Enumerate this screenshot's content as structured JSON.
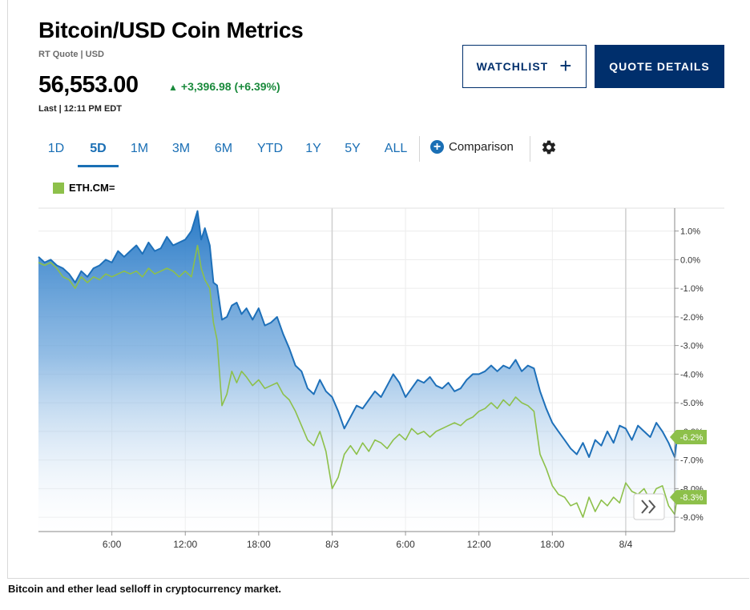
{
  "header": {
    "title": "Bitcoin/USD Coin Metrics",
    "subtitle": "RT Quote | USD",
    "price": "56,553.00",
    "change": "+3,396.98 (+6.39%)",
    "last_time": "Last | 12:11 PM EDT",
    "up_color": "#1a8a3c"
  },
  "actions": {
    "watchlist_label": "WATCHLIST",
    "quote_details_label": "QUOTE DETAILS",
    "brand_color": "#002f6c"
  },
  "tabs": [
    {
      "label": "1D",
      "active": false
    },
    {
      "label": "5D",
      "active": true
    },
    {
      "label": "1M",
      "active": false
    },
    {
      "label": "3M",
      "active": false
    },
    {
      "label": "6M",
      "active": false
    },
    {
      "label": "YTD",
      "active": false
    },
    {
      "label": "1Y",
      "active": false
    },
    {
      "label": "5Y",
      "active": false
    },
    {
      "label": "ALL",
      "active": false
    }
  ],
  "comparison_label": "Comparison",
  "icons": {
    "plus": "plus-icon",
    "comparison": "plus-circle-icon",
    "settings": "gear-icon",
    "scroll": "double-chevron-right-icon"
  },
  "caption": "Bitcoin and ether lead selloff in cryptocurrency market.",
  "chart_data": {
    "type": "area",
    "legend": [
      {
        "name": "ETH.CM=",
        "color": "#8dc04a"
      }
    ],
    "x_ticks": [
      "6:00",
      "12:00",
      "18:00",
      "8/3",
      "6:00",
      "12:00",
      "18:00",
      "8/4"
    ],
    "x_tick_hours": [
      6,
      12,
      18,
      24,
      30,
      36,
      42,
      48
    ],
    "x_range": [
      0,
      52
    ],
    "ylim": [
      -9.5,
      1.8
    ],
    "y_ticks": [
      "1.0%",
      "0.0%",
      "-1.0%",
      "-2.0%",
      "-3.0%",
      "-4.0%",
      "-5.0%",
      "-6.0%",
      "-7.0%",
      "-8.0%",
      "-9.0%"
    ],
    "y_tick_values": [
      1,
      0,
      -1,
      -2,
      -3,
      -4,
      -5,
      -6,
      -7,
      -8,
      -9
    ],
    "day_separators": [
      24,
      48
    ],
    "series": [
      {
        "name": "Bitcoin/USD",
        "color": "#1e70b9",
        "last_label": "-6.2%",
        "points": [
          [
            0,
            0.1
          ],
          [
            0.5,
            -0.1
          ],
          [
            1,
            0.0
          ],
          [
            1.5,
            -0.2
          ],
          [
            2,
            -0.3
          ],
          [
            2.5,
            -0.5
          ],
          [
            3,
            -0.8
          ],
          [
            3.5,
            -0.4
          ],
          [
            4,
            -0.6
          ],
          [
            4.5,
            -0.3
          ],
          [
            5,
            -0.2
          ],
          [
            5.5,
            0.0
          ],
          [
            6,
            -0.1
          ],
          [
            6.5,
            0.3
          ],
          [
            7,
            0.1
          ],
          [
            7.5,
            0.3
          ],
          [
            8,
            0.5
          ],
          [
            8.5,
            0.2
          ],
          [
            9,
            0.6
          ],
          [
            9.5,
            0.3
          ],
          [
            10,
            0.4
          ],
          [
            10.5,
            0.8
          ],
          [
            11,
            0.5
          ],
          [
            11.5,
            0.6
          ],
          [
            12,
            0.7
          ],
          [
            12.5,
            1.0
          ],
          [
            13,
            1.7
          ],
          [
            13.3,
            0.7
          ],
          [
            13.6,
            1.1
          ],
          [
            14,
            0.5
          ],
          [
            14.3,
            -0.8
          ],
          [
            14.6,
            -0.9
          ],
          [
            15,
            -2.1
          ],
          [
            15.4,
            -2.0
          ],
          [
            15.8,
            -1.6
          ],
          [
            16.2,
            -1.5
          ],
          [
            16.6,
            -1.9
          ],
          [
            17,
            -1.7
          ],
          [
            17.5,
            -2.1
          ],
          [
            18,
            -1.7
          ],
          [
            18.5,
            -2.3
          ],
          [
            19,
            -2.2
          ],
          [
            19.5,
            -2.0
          ],
          [
            20,
            -2.6
          ],
          [
            20.5,
            -3.1
          ],
          [
            21,
            -3.7
          ],
          [
            21.5,
            -3.9
          ],
          [
            22,
            -4.5
          ],
          [
            22.5,
            -4.7
          ],
          [
            23,
            -4.2
          ],
          [
            23.5,
            -4.6
          ],
          [
            24,
            -4.8
          ],
          [
            24.5,
            -5.3
          ],
          [
            25,
            -5.9
          ],
          [
            25.5,
            -5.5
          ],
          [
            26,
            -5.1
          ],
          [
            26.5,
            -5.2
          ],
          [
            27,
            -4.9
          ],
          [
            27.5,
            -4.6
          ],
          [
            28,
            -4.8
          ],
          [
            28.5,
            -4.4
          ],
          [
            29,
            -4.0
          ],
          [
            29.5,
            -4.3
          ],
          [
            30,
            -4.8
          ],
          [
            30.5,
            -4.5
          ],
          [
            31,
            -4.2
          ],
          [
            31.5,
            -4.3
          ],
          [
            32,
            -4.1
          ],
          [
            32.5,
            -4.4
          ],
          [
            33,
            -4.5
          ],
          [
            33.5,
            -4.3
          ],
          [
            34,
            -4.6
          ],
          [
            34.5,
            -4.5
          ],
          [
            35,
            -4.2
          ],
          [
            35.5,
            -4.0
          ],
          [
            36,
            -4.0
          ],
          [
            36.5,
            -3.9
          ],
          [
            37,
            -3.7
          ],
          [
            37.5,
            -3.9
          ],
          [
            38,
            -3.7
          ],
          [
            38.5,
            -3.8
          ],
          [
            39,
            -3.5
          ],
          [
            39.5,
            -3.9
          ],
          [
            40,
            -3.7
          ],
          [
            40.5,
            -3.8
          ],
          [
            41,
            -4.6
          ],
          [
            41.5,
            -5.2
          ],
          [
            42,
            -5.7
          ],
          [
            42.5,
            -6.0
          ],
          [
            43,
            -6.3
          ],
          [
            43.5,
            -6.6
          ],
          [
            44,
            -6.8
          ],
          [
            44.5,
            -6.4
          ],
          [
            45,
            -6.9
          ],
          [
            45.5,
            -6.3
          ],
          [
            46,
            -6.5
          ],
          [
            46.5,
            -6.0
          ],
          [
            47,
            -6.4
          ],
          [
            47.5,
            -5.8
          ],
          [
            48,
            -5.9
          ],
          [
            48.5,
            -6.3
          ],
          [
            49,
            -5.8
          ],
          [
            49.5,
            -6.0
          ],
          [
            50,
            -6.2
          ],
          [
            50.5,
            -5.7
          ],
          [
            51,
            -6.0
          ],
          [
            51.5,
            -6.4
          ],
          [
            52,
            -6.9
          ],
          [
            52.2,
            -6.2
          ]
        ]
      },
      {
        "name": "ETH.CM=",
        "color": "#8dc04a",
        "last_label": "-8.3%",
        "points": [
          [
            0,
            -0.1
          ],
          [
            0.5,
            -0.2
          ],
          [
            1,
            -0.1
          ],
          [
            1.5,
            -0.3
          ],
          [
            2,
            -0.6
          ],
          [
            2.5,
            -0.7
          ],
          [
            3,
            -1.0
          ],
          [
            3.5,
            -0.6
          ],
          [
            4,
            -0.8
          ],
          [
            4.5,
            -0.6
          ],
          [
            5,
            -0.7
          ],
          [
            5.5,
            -0.5
          ],
          [
            6,
            -0.6
          ],
          [
            6.5,
            -0.5
          ],
          [
            7,
            -0.4
          ],
          [
            7.5,
            -0.5
          ],
          [
            8,
            -0.4
          ],
          [
            8.5,
            -0.6
          ],
          [
            9,
            -0.3
          ],
          [
            9.5,
            -0.5
          ],
          [
            10,
            -0.4
          ],
          [
            10.5,
            -0.3
          ],
          [
            11,
            -0.4
          ],
          [
            11.5,
            -0.6
          ],
          [
            12,
            -0.4
          ],
          [
            12.5,
            -0.6
          ],
          [
            13,
            0.5
          ],
          [
            13.3,
            -0.3
          ],
          [
            13.6,
            -0.7
          ],
          [
            14,
            -1.0
          ],
          [
            14.3,
            -2.2
          ],
          [
            14.6,
            -2.8
          ],
          [
            15,
            -5.1
          ],
          [
            15.4,
            -4.7
          ],
          [
            15.8,
            -3.9
          ],
          [
            16.2,
            -4.3
          ],
          [
            16.6,
            -3.9
          ],
          [
            17,
            -4.1
          ],
          [
            17.5,
            -4.4
          ],
          [
            18,
            -4.2
          ],
          [
            18.5,
            -4.5
          ],
          [
            19,
            -4.4
          ],
          [
            19.5,
            -4.3
          ],
          [
            20,
            -4.7
          ],
          [
            20.5,
            -4.9
          ],
          [
            21,
            -5.3
          ],
          [
            21.5,
            -5.8
          ],
          [
            22,
            -6.3
          ],
          [
            22.5,
            -6.5
          ],
          [
            23,
            -6.0
          ],
          [
            23.5,
            -6.7
          ],
          [
            24,
            -8.0
          ],
          [
            24.5,
            -7.6
          ],
          [
            25,
            -6.8
          ],
          [
            25.5,
            -6.5
          ],
          [
            26,
            -6.8
          ],
          [
            26.5,
            -6.4
          ],
          [
            27,
            -6.7
          ],
          [
            27.5,
            -6.3
          ],
          [
            28,
            -6.4
          ],
          [
            28.5,
            -6.6
          ],
          [
            29,
            -6.3
          ],
          [
            29.5,
            -6.1
          ],
          [
            30,
            -6.3
          ],
          [
            30.5,
            -5.9
          ],
          [
            31,
            -6.1
          ],
          [
            31.5,
            -6.0
          ],
          [
            32,
            -6.2
          ],
          [
            32.5,
            -6.0
          ],
          [
            33,
            -5.9
          ],
          [
            33.5,
            -5.8
          ],
          [
            34,
            -5.7
          ],
          [
            34.5,
            -5.8
          ],
          [
            35,
            -5.6
          ],
          [
            35.5,
            -5.5
          ],
          [
            36,
            -5.3
          ],
          [
            36.5,
            -5.2
          ],
          [
            37,
            -5.0
          ],
          [
            37.5,
            -5.2
          ],
          [
            38,
            -4.9
          ],
          [
            38.5,
            -5.1
          ],
          [
            39,
            -4.8
          ],
          [
            39.5,
            -5.0
          ],
          [
            40,
            -5.1
          ],
          [
            40.5,
            -5.3
          ],
          [
            41,
            -6.8
          ],
          [
            41.5,
            -7.3
          ],
          [
            42,
            -7.9
          ],
          [
            42.5,
            -8.2
          ],
          [
            43,
            -8.3
          ],
          [
            43.5,
            -8.6
          ],
          [
            44,
            -8.5
          ],
          [
            44.5,
            -9.0
          ],
          [
            45,
            -8.3
          ],
          [
            45.5,
            -8.8
          ],
          [
            46,
            -8.4
          ],
          [
            46.5,
            -8.6
          ],
          [
            47,
            -8.3
          ],
          [
            47.5,
            -8.5
          ],
          [
            48,
            -7.8
          ],
          [
            48.5,
            -8.1
          ],
          [
            49,
            -8.2
          ],
          [
            49.5,
            -8.0
          ],
          [
            50,
            -8.4
          ],
          [
            50.5,
            -8.0
          ],
          [
            51,
            -7.9
          ],
          [
            51.5,
            -8.6
          ],
          [
            52,
            -8.9
          ],
          [
            52.2,
            -8.3
          ]
        ]
      }
    ]
  }
}
